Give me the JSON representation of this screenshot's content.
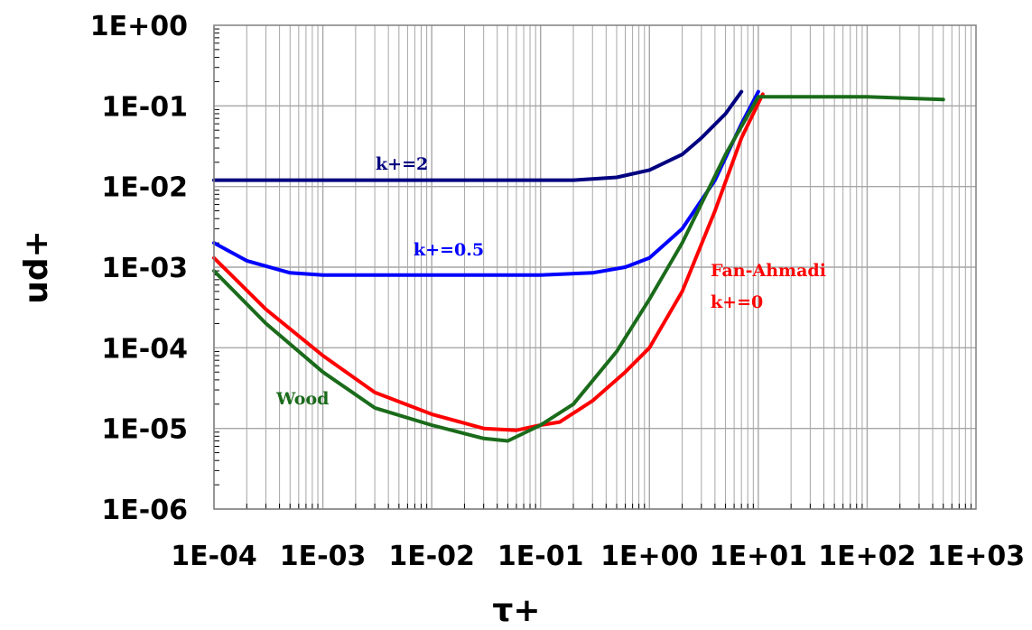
{
  "chart_data": {
    "type": "line",
    "xlabel": "τ+",
    "ylabel": "ud+",
    "x_scale": "log",
    "y_scale": "log",
    "xlim": [
      0.0001,
      1000
    ],
    "ylim": [
      1e-06,
      1
    ],
    "grid": true,
    "legend": "none",
    "x_tick_labels": [
      "1E-04",
      "1E-03",
      "1E-02",
      "1E-01",
      "1E+00",
      "1E+01",
      "1E+02",
      "1E+03"
    ],
    "y_tick_labels": [
      "1E+00",
      "1E-01",
      "1E-02",
      "1E-03",
      "1E-04",
      "1E-05",
      "1E-06"
    ],
    "series": [
      {
        "color": "#000080",
        "x": [
          0.0001,
          0.001,
          0.01,
          0.1,
          0.2,
          0.5,
          1,
          2,
          3,
          5,
          7
        ],
        "y": [
          0.012,
          0.012,
          0.012,
          0.012,
          0.012,
          0.013,
          0.016,
          0.025,
          0.04,
          0.08,
          0.15
        ]
      },
      {
        "color": "#0000ff",
        "x": [
          0.0001,
          0.0002,
          0.0005,
          0.001,
          0.01,
          0.1,
          0.3,
          0.6,
          1,
          2,
          4,
          7,
          10
        ],
        "y": [
          0.002,
          0.0012,
          0.00085,
          0.0008,
          0.0008,
          0.0008,
          0.00085,
          0.001,
          0.0013,
          0.003,
          0.012,
          0.06,
          0.15
        ]
      },
      {
        "color": "#ff0000",
        "x": [
          0.0001,
          0.0003,
          0.001,
          0.003,
          0.01,
          0.03,
          0.06,
          0.1,
          0.15,
          0.3,
          0.6,
          1,
          2,
          4,
          7,
          11
        ],
        "y": [
          0.0013,
          0.0003,
          8e-05,
          2.8e-05,
          1.5e-05,
          1e-05,
          9.5e-06,
          1.1e-05,
          1.2e-05,
          2.2e-05,
          5e-05,
          0.0001,
          0.0005,
          0.005,
          0.04,
          0.14
        ]
      },
      {
        "color": "#1a6b1a",
        "x": [
          0.0001,
          0.0003,
          0.001,
          0.003,
          0.01,
          0.03,
          0.05,
          0.1,
          0.2,
          0.5,
          1,
          2,
          5,
          10,
          20,
          100,
          500
        ],
        "y": [
          0.0009,
          0.0002,
          5e-05,
          1.8e-05,
          1.1e-05,
          7.5e-06,
          7e-06,
          1.1e-05,
          2e-05,
          9e-05,
          0.0004,
          0.002,
          0.025,
          0.13,
          0.13,
          0.13,
          0.12
        ]
      }
    ],
    "annotations": [
      {
        "text": "k+=2",
        "color": "#000080"
      },
      {
        "text": "k+=0.5",
        "color": "#0000ff"
      },
      {
        "text": "Fan-Ahmadi",
        "color": "#ff0000"
      },
      {
        "text": "k+=0",
        "color": "#ff0000"
      },
      {
        "text": "Wood",
        "color": "#1a6b1a"
      }
    ]
  }
}
